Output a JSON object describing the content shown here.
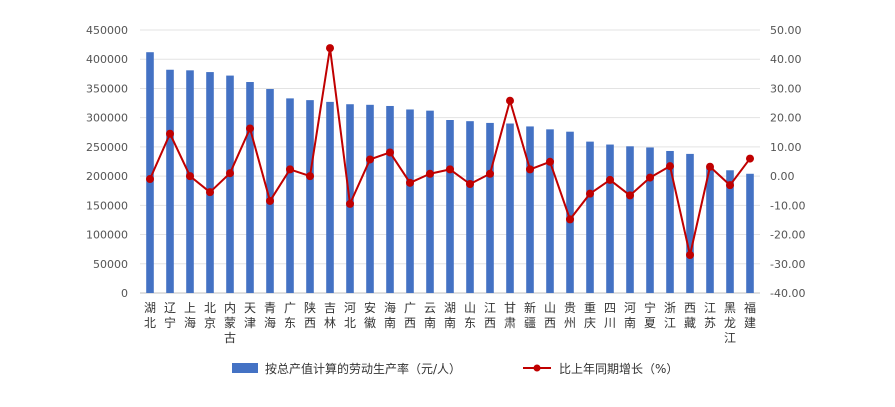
{
  "chart_data": {
    "type": "bar+line",
    "categories": [
      "湖北",
      "辽宁",
      "上海",
      "北京",
      "内蒙古",
      "天津",
      "青海",
      "广东",
      "陕西",
      "吉林",
      "河北",
      "安徽",
      "海南",
      "广西",
      "云南",
      "湖南",
      "山东",
      "江西",
      "甘肃",
      "新疆",
      "山西",
      "贵州",
      "重庆",
      "四川",
      "河南",
      "宁夏",
      "浙江",
      "西藏",
      "江苏",
      "黑龙江",
      "福建"
    ],
    "series": [
      {
        "name": "按总产值计算的劳动生产率（元/人）",
        "type": "bar",
        "axis": "left",
        "color": "#4472C4",
        "values": [
          412000,
          382000,
          381000,
          378000,
          372000,
          361000,
          349000,
          333000,
          330000,
          327000,
          323000,
          322000,
          320000,
          314000,
          312000,
          296000,
          294000,
          291000,
          290000,
          285000,
          280000,
          276000,
          259000,
          254000,
          251000,
          249000,
          243000,
          238000,
          215000,
          210000,
          204000
        ]
      },
      {
        "name": "比上年同期增长（%）",
        "type": "line",
        "axis": "right",
        "color": "#C00000",
        "values": [
          -1.0,
          14.5,
          0.0,
          -5.5,
          1.0,
          16.3,
          -8.5,
          2.3,
          0.0,
          43.8,
          -9.5,
          5.7,
          8.1,
          -2.3,
          0.8,
          2.3,
          -2.7,
          0.8,
          25.8,
          2.3,
          4.9,
          -14.8,
          -6.0,
          -1.3,
          -6.6,
          -0.5,
          3.4,
          -27.0,
          3.2,
          -3.1,
          6.0
        ]
      }
    ],
    "y_left": {
      "min": 0,
      "max": 450000,
      "step": 50000,
      "tick_labels": [
        "0",
        "50000",
        "100000",
        "150000",
        "200000",
        "250000",
        "300000",
        "350000",
        "400000",
        "450000"
      ]
    },
    "y_right": {
      "min": -40,
      "max": 50,
      "step": 10,
      "tick_labels": [
        "-40.00",
        "-30.00",
        "-20.00",
        "-10.00",
        "0.00",
        "10.00",
        "20.00",
        "30.00",
        "40.00",
        "50.00"
      ]
    },
    "title": "",
    "xlabel": "",
    "ylabel": "",
    "grid": true,
    "legend_position": "bottom"
  }
}
